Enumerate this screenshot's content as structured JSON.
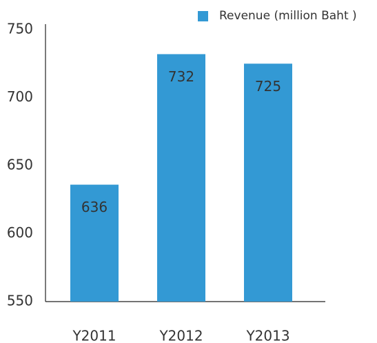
{
  "chart_data": {
    "type": "bar",
    "categories": [
      "Y2011",
      "Y2012",
      "Y2013"
    ],
    "series": [
      {
        "name": "Revenue (million Baht )",
        "color": "#3399d4",
        "values": [
          636,
          732,
          725
        ]
      }
    ],
    "ylim": [
      550,
      750
    ],
    "yticks": [
      550,
      600,
      650,
      700,
      750
    ],
    "grid": false,
    "legend": "top-right"
  }
}
